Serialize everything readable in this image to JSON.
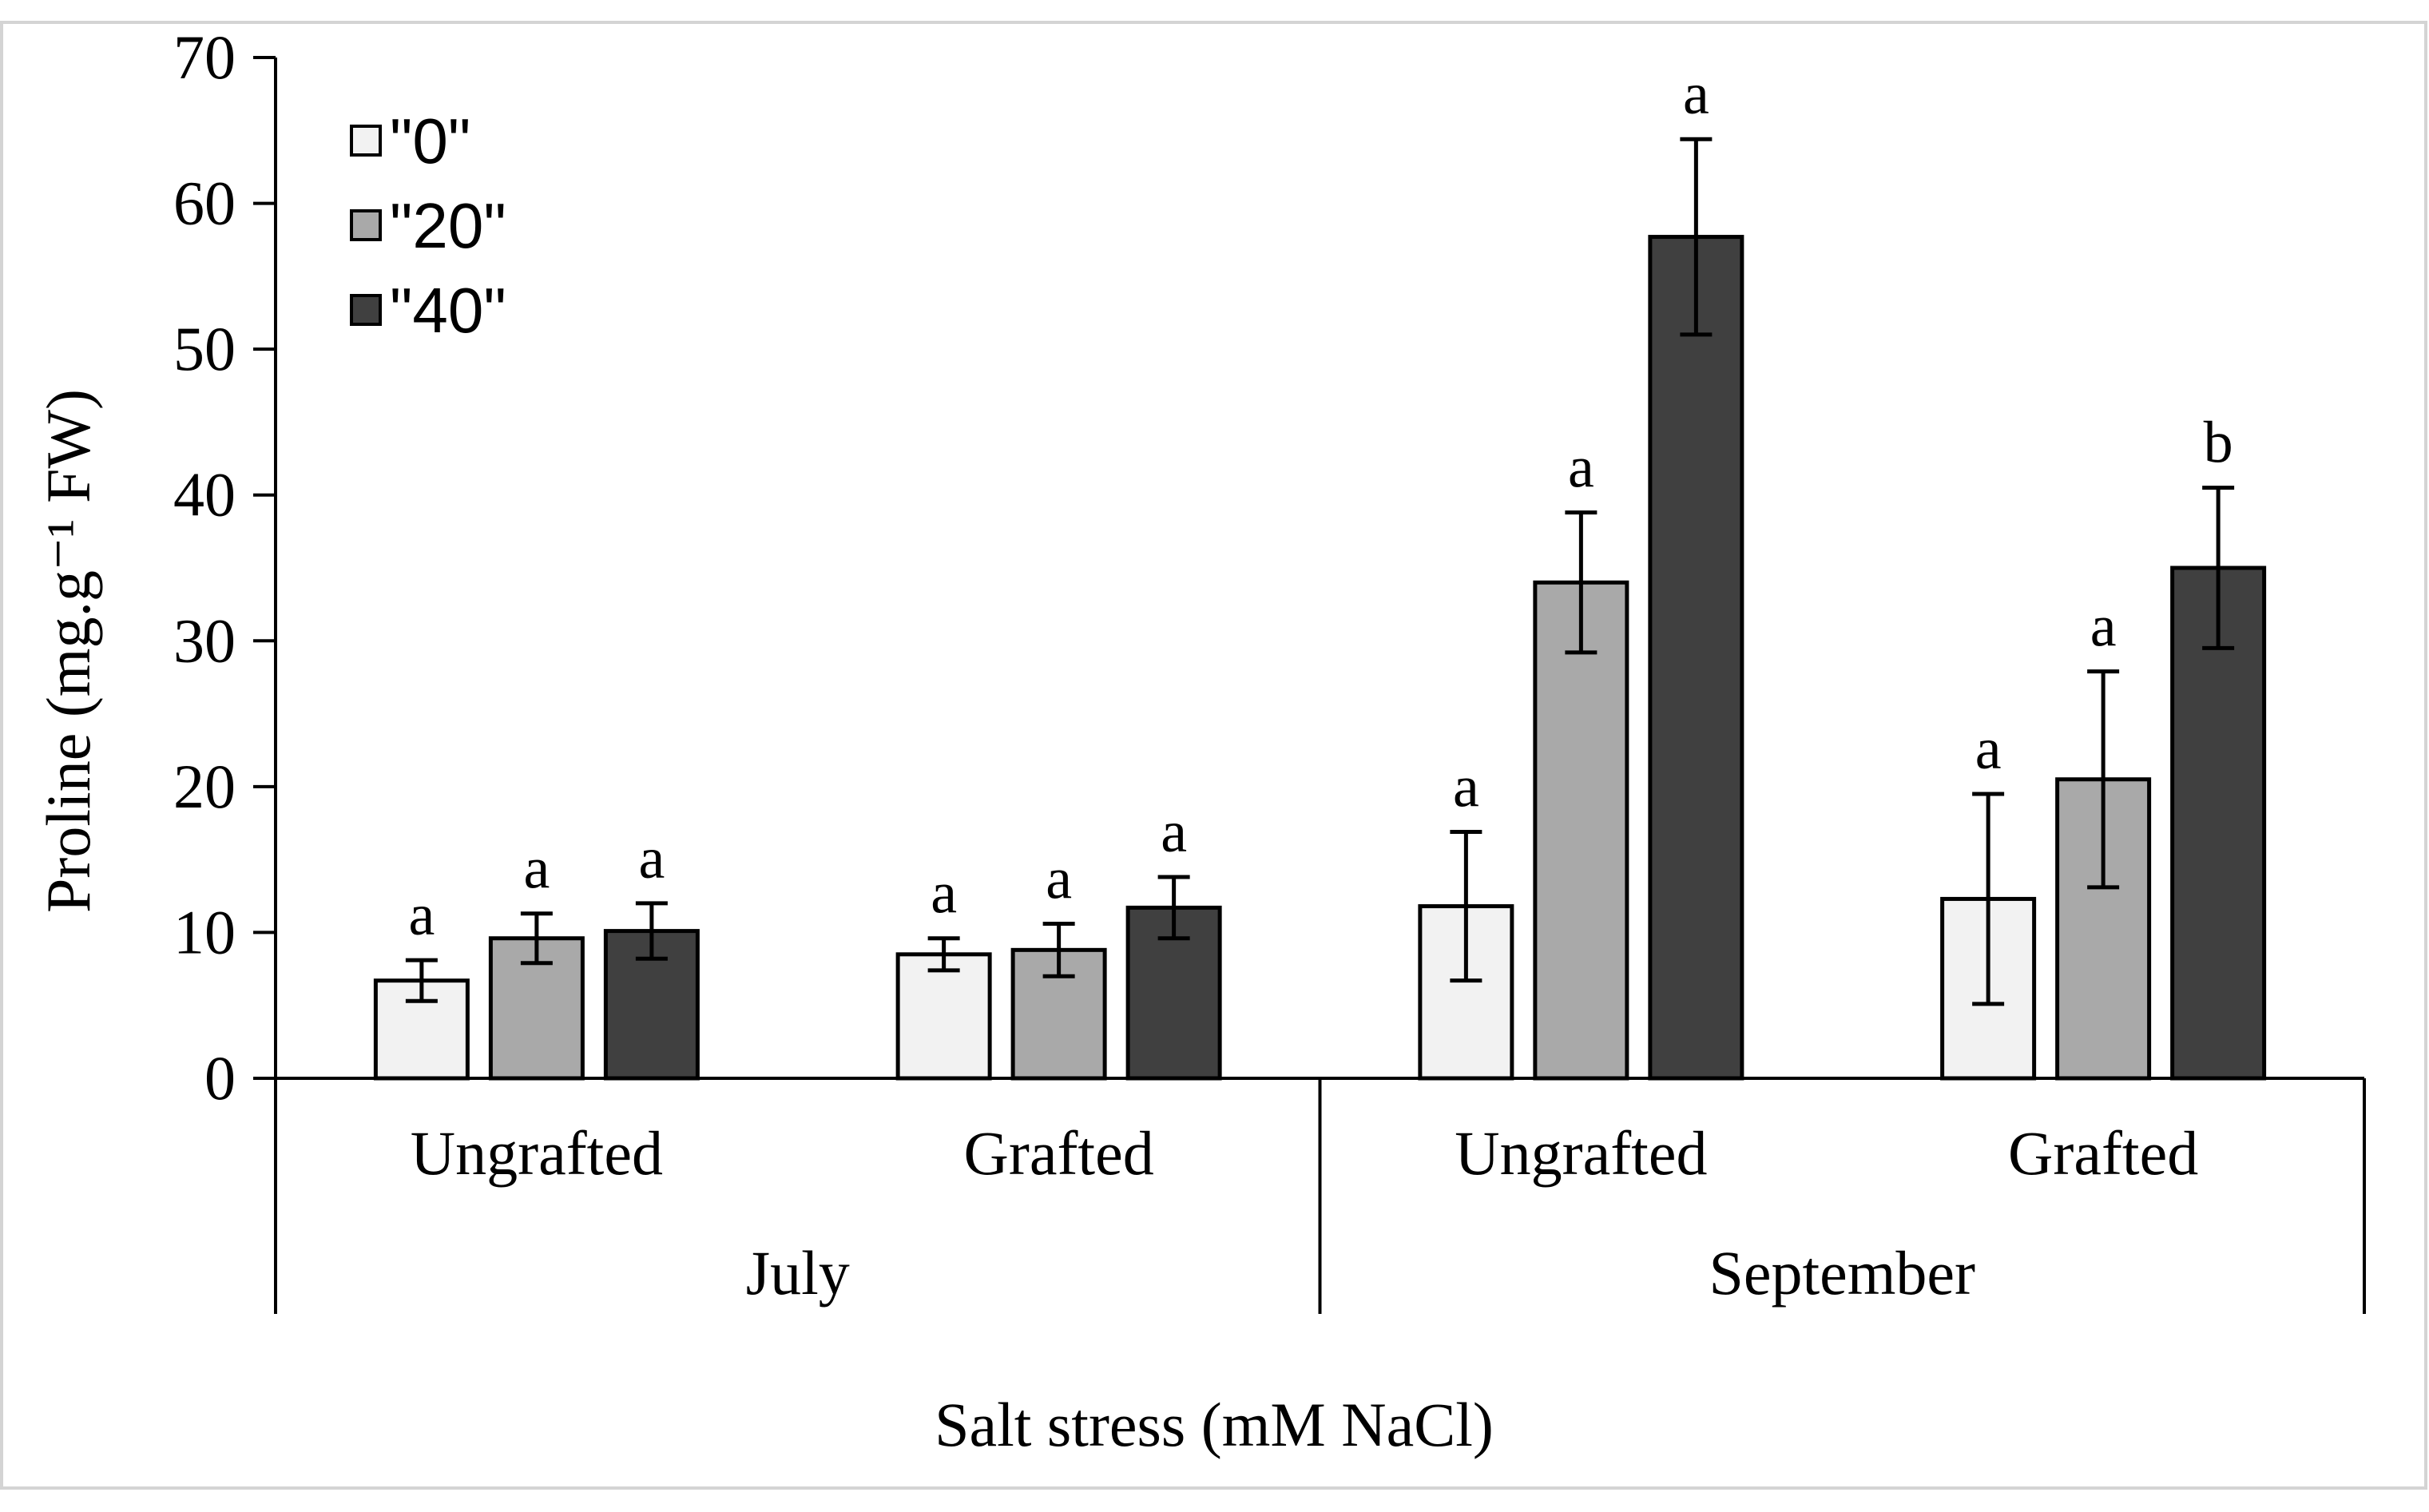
{
  "chart_data": {
    "type": "bar",
    "title": "",
    "ylabel": "Proline (mg.g⁻¹ FW)",
    "xlabel": "Salt stress (mM NaCl)",
    "ylim": [
      0,
      70
    ],
    "yticks": [
      0,
      10,
      20,
      30,
      40,
      50,
      60,
      70
    ],
    "legend_position": "top-left",
    "groups": [
      {
        "label": "July",
        "categories": [
          "Ungrafted",
          "Grafted"
        ]
      },
      {
        "label": "September",
        "categories": [
          "Ungrafted",
          "Grafted"
        ]
      }
    ],
    "categories": [
      "Ungrafted",
      "Grafted",
      "Ungrafted",
      "Grafted"
    ],
    "series": [
      {
        "name": "\"0\"",
        "color": "#f2f2f2",
        "values": [
          6.7,
          8.5,
          11.8,
          12.3
        ],
        "error": [
          1.4,
          1.1,
          5.1,
          7.2
        ],
        "letters": [
          "a",
          "a",
          "a",
          "a"
        ]
      },
      {
        "name": "\"20\"",
        "color": "#a9a9a9",
        "values": [
          9.6,
          8.8,
          34.0,
          20.5
        ],
        "error": [
          1.7,
          1.8,
          4.8,
          7.4
        ],
        "letters": [
          "a",
          "a",
          "a",
          "a"
        ]
      },
      {
        "name": "\"40\"",
        "color": "#404040",
        "values": [
          10.1,
          11.7,
          57.7,
          35.0
        ],
        "error": [
          1.9,
          2.1,
          6.7,
          5.5
        ],
        "letters": [
          "a",
          "a",
          "a",
          "b"
        ]
      }
    ]
  }
}
